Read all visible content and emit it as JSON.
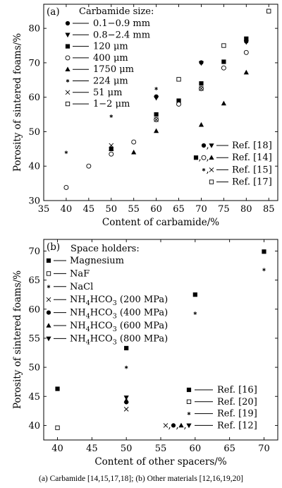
{
  "caption": "(a)  Carbamide  [14,15,17,18]; (b) Other materials [12,16,19,20]",
  "chart_data": [
    {
      "type": "scatter",
      "panel_label": "(a)",
      "xlabel": "Content of carbamide/%",
      "ylabel": "Porosity of sintered foams/%",
      "xlim": [
        35,
        87
      ],
      "ylim": [
        30,
        87
      ],
      "xticks": [
        "35",
        "40",
        "45",
        "50",
        "55",
        "60",
        "65",
        "70",
        "75",
        "80",
        "85"
      ],
      "yticks": [
        "30",
        "40",
        "50",
        "60",
        "70",
        "80"
      ],
      "legend_title": "Carbamide size:",
      "grid": false,
      "series": [
        {
          "name": "0.1−0.9 mm",
          "marker": "circle-filled",
          "points": [
            [
              60,
              60.2
            ],
            [
              70,
              70.1
            ],
            [
              80,
              76.2
            ]
          ]
        },
        {
          "name": "0.8−2.4 mm",
          "marker": "triangle-down",
          "points": [
            [
              60,
              59.8
            ],
            [
              70,
              69.9
            ],
            [
              80,
              76.0
            ]
          ]
        },
        {
          "name": "120 μm",
          "marker": "square-filled",
          "points": [
            [
              50,
              45.0
            ],
            [
              60,
              55.0
            ],
            [
              65,
              59.0
            ],
            [
              70,
              64.0
            ],
            [
              75,
              70.3
            ],
            [
              80,
              77.0
            ]
          ]
        },
        {
          "name": "400 μm",
          "marker": "circle-open",
          "points": [
            [
              40,
              33.8
            ],
            [
              45,
              40.0
            ],
            [
              50,
              43.5
            ],
            [
              55,
              47.0
            ],
            [
              60,
              53.5
            ],
            [
              65,
              58.0
            ],
            [
              70,
              62.5
            ],
            [
              75,
              68.5
            ],
            [
              80,
              73.0
            ]
          ]
        },
        {
          "name": "1750 μm",
          "marker": "triangle-up",
          "points": [
            [
              50,
              45.0
            ],
            [
              55,
              44.0
            ],
            [
              60,
              50.2
            ],
            [
              70,
              52.0
            ],
            [
              75,
              58.2
            ],
            [
              80,
              67.2
            ]
          ]
        },
        {
          "name": "224 μm",
          "marker": "asterisk",
          "points": [
            [
              40,
              44.0
            ],
            [
              50,
              54.5
            ],
            [
              60,
              62.5
            ]
          ]
        },
        {
          "name": "51 μm",
          "marker": "x",
          "points": [
            [
              50,
              46.0
            ],
            [
              60,
              53.5
            ],
            [
              70,
              62.5
            ]
          ]
        },
        {
          "name": "1−2 μm",
          "marker": "square-open",
          "points": [
            [
              65,
              65.2
            ],
            [
              75,
              75.0
            ],
            [
              85,
              85.0
            ]
          ]
        }
      ],
      "refs": [
        "Ref. [18]",
        "Ref. [14]",
        "Ref. [15]",
        "Ref. [17]"
      ]
    },
    {
      "type": "scatter",
      "panel_label": "(b)",
      "xlabel": "Content of other spacers/%",
      "ylabel": "Porosity of sintered foams/%",
      "xlim": [
        38,
        72
      ],
      "ylim": [
        37.5,
        72
      ],
      "xticks": [
        "40",
        "45",
        "50",
        "55",
        "60",
        "65",
        "70"
      ],
      "yticks": [
        "40",
        "45",
        "50",
        "55",
        "60",
        "65",
        "70"
      ],
      "legend_title": "Space holders:",
      "grid": false,
      "series": [
        {
          "name": "Magnesium",
          "marker": "square-filled",
          "points": [
            [
              40,
              46.3
            ],
            [
              50,
              53.3
            ],
            [
              60,
              62.5
            ],
            [
              70,
              69.9
            ]
          ]
        },
        {
          "name": "NaF",
          "marker": "square-open",
          "points": [
            [
              40,
              39.6
            ]
          ]
        },
        {
          "name": "NaCl",
          "marker": "asterisk",
          "points": [
            [
              50,
              50.0
            ],
            [
              60,
              59.3
            ],
            [
              70,
              66.8
            ]
          ]
        },
        {
          "name": "NH4HCO3 (200 MPa)",
          "marker": "x",
          "points": [
            [
              50,
              42.8
            ]
          ]
        },
        {
          "name": "NH4HCO3 (400 MPa)",
          "marker": "circle-filled",
          "points": [
            [
              50,
              44.0
            ]
          ]
        },
        {
          "name": "NH4HCO3 (600 MPa)",
          "marker": "triangle-up",
          "points": [
            [
              50,
              44.3
            ]
          ]
        },
        {
          "name": "NH4HCO3 (800 MPa)",
          "marker": "triangle-down",
          "points": [
            [
              50,
              44.8
            ]
          ]
        }
      ],
      "refs": [
        "Ref. [16]",
        "Ref. [20]",
        "Ref. [19]",
        "Ref. [12]"
      ]
    }
  ]
}
